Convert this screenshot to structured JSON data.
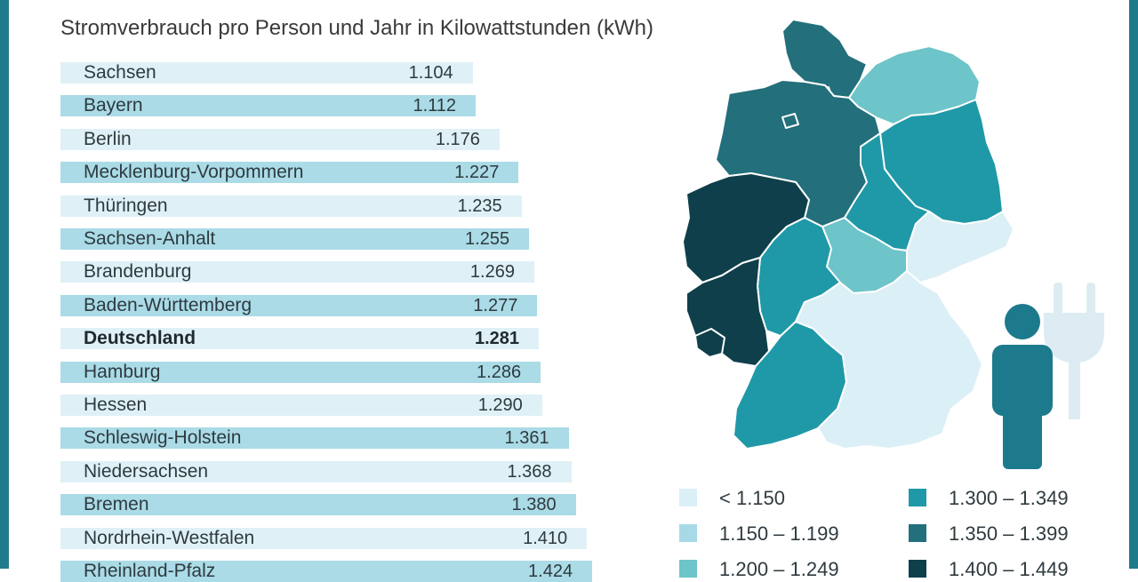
{
  "title": "Stromverbrauch pro Person und Jahr in Kilowattstunden (kWh)",
  "colors": {
    "bar_light": "#dff1f7",
    "bar_dark": "#aadbe7",
    "class_1": "#dbeff6",
    "class_2": "#a7d9e6",
    "class_3": "#6dc4c9",
    "class_4": "#1f99a7",
    "class_5": "#236f7b",
    "class_6": "#0f3f4b",
    "frame": "#1f7a8c",
    "icon": "#1c7a8c",
    "plug": "#dcecf2"
  },
  "chart_data": {
    "type": "bar",
    "orientation": "horizontal",
    "title": "Stromverbrauch pro Person und Jahr in Kilowattstunden (kWh)",
    "categories": [
      "Sachsen",
      "Bayern",
      "Berlin",
      "Mecklenburg-Vorpommern",
      "Thüringen",
      "Sachsen-Anhalt",
      "Brandenburg",
      "Baden-Württemberg",
      "Deutschland",
      "Hamburg",
      "Hessen",
      "Schleswig-Holstein",
      "Niedersachsen",
      "Bremen",
      "Nordrhein-Westfalen",
      "Rheinland-Pfalz"
    ],
    "values": [
      1104,
      1112,
      1176,
      1227,
      1235,
      1255,
      1269,
      1277,
      1281,
      1286,
      1290,
      1361,
      1368,
      1380,
      1410,
      1424
    ],
    "value_labels": [
      "1.104",
      "1.112",
      "1.176",
      "1.227",
      "1.235",
      "1.255",
      "1.269",
      "1.277",
      "1.281",
      "1.286",
      "1.290",
      "1.361",
      "1.368",
      "1.380",
      "1.410",
      "1.424"
    ],
    "highlight": "Deutschland",
    "xlabel": "",
    "ylabel": ""
  },
  "legend": [
    {
      "label": "< 1.150",
      "color": "#dbeff6"
    },
    {
      "label": "1.150 – 1.199",
      "color": "#a7d9e6"
    },
    {
      "label": "1.200 – 1.249",
      "color": "#6dc4c9"
    },
    {
      "label": "1.300 – 1.349",
      "color": "#1f99a7"
    },
    {
      "label": "1.350 – 1.399",
      "color": "#236f7b"
    },
    {
      "label": "1.400 – 1.449",
      "color": "#0f3f4b"
    }
  ]
}
